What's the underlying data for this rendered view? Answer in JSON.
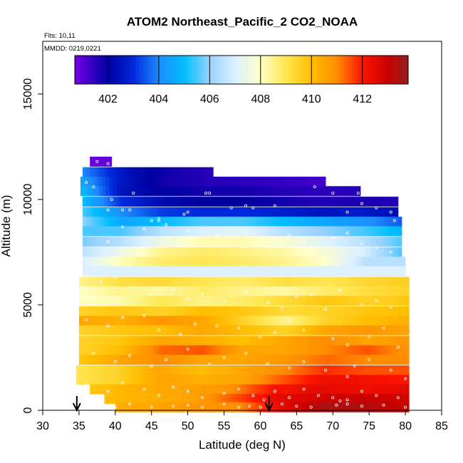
{
  "chart_data": {
    "type": "heatmap",
    "title": "ATOM2 Northeast_Pacific_2 CO2_NOAA",
    "flights_label": "Flts: 10,11",
    "dates_label": "MMDD: 0219,0221",
    "xlabel": "Latitude (deg N)",
    "ylabel": "Altitude (m)",
    "xlim": [
      30,
      85
    ],
    "ylim": [
      0,
      17500
    ],
    "x_ticks": [
      30,
      35,
      40,
      45,
      50,
      55,
      60,
      65,
      70,
      75,
      80,
      85
    ],
    "y_ticks": [
      0,
      5000,
      10000,
      15000
    ],
    "colorbar": {
      "range": [
        400.7,
        413.8
      ],
      "ticks": [
        402,
        404,
        406,
        408,
        410,
        412
      ]
    },
    "arrow_markers_latitude": [
      34.7,
      61.2
    ],
    "altitude_bands": [
      {
        "alt": 11800,
        "lat": [
          36.5,
          39.5
        ],
        "co2": [
          400.9,
          400.9
        ]
      },
      {
        "alt": 11300,
        "lat": [
          35.5,
          53.5
        ],
        "co2": [
          404.0,
          402.4,
          401.8,
          401.5
        ]
      },
      {
        "alt": 10850,
        "lat": [
          35.2,
          69.0
        ],
        "co2": [
          404.5,
          402.6,
          401.8,
          401.6,
          401.5,
          401.4,
          401.2
        ]
      },
      {
        "alt": 10400,
        "lat": [
          35.2,
          73.8
        ],
        "co2": [
          405.0,
          402.5,
          402.0,
          401.8,
          401.8,
          401.6,
          401.5,
          401.6
        ]
      },
      {
        "alt": 9900,
        "lat": [
          35.5,
          79.0
        ],
        "co2": [
          405.0,
          403.0,
          402.3,
          402.0,
          402.0,
          401.8,
          401.6,
          401.7,
          401.6
        ]
      },
      {
        "alt": 9400,
        "lat": [
          35.5,
          79.0
        ],
        "co2": [
          405.5,
          404.0,
          403.2,
          403.0,
          403.0,
          402.8,
          402.5,
          402.7,
          402.3
        ]
      },
      {
        "alt": 8950,
        "lat": [
          35.5,
          79.5
        ],
        "co2": [
          406.0,
          404.5,
          405.0,
          405.5,
          405.5,
          405.0,
          404.5,
          404.2,
          403.5
        ]
      },
      {
        "alt": 8500,
        "lat": [
          35.5,
          79.5
        ],
        "co2": [
          405.5,
          405.5,
          406.5,
          407.0,
          407.2,
          406.5,
          406.0,
          405.5,
          404.8
        ]
      },
      {
        "alt": 8000,
        "lat": [
          35.5,
          79.5
        ],
        "co2": [
          405.8,
          406.5,
          407.5,
          408.2,
          408.2,
          407.8,
          407.2,
          406.5,
          405.5
        ]
      },
      {
        "alt": 7500,
        "lat": [
          35.5,
          79.5
        ],
        "co2": [
          406.5,
          407.5,
          408.5,
          408.8,
          408.6,
          408.3,
          407.8,
          407.0,
          405.5
        ]
      },
      {
        "alt": 7050,
        "lat": [
          35.5,
          80.0
        ],
        "co2": [
          407.0,
          408.2,
          408.8,
          409.0,
          408.8,
          408.5,
          408.0,
          406.5,
          406.5
        ]
      },
      {
        "alt": 6600,
        "lat": [
          35.5,
          80.0
        ],
        "co2": [
          407.0,
          407.0,
          407.0,
          407.0,
          407.0,
          407.0,
          407.0,
          407.0,
          407.0
        ]
      },
      {
        "alt": 6100,
        "lat": [
          35.0,
          80.5
        ],
        "co2": [
          408.5,
          409.2,
          409.3,
          409.0,
          408.8,
          409.2,
          409.0,
          409.4,
          409.6
        ]
      },
      {
        "alt": 5650,
        "lat": [
          35.0,
          80.5
        ],
        "co2": [
          408.0,
          408.5,
          408.3,
          408.8,
          408.5,
          408.3,
          408.8,
          409.2,
          409.5
        ]
      },
      {
        "alt": 5200,
        "lat": [
          35.0,
          80.5
        ],
        "co2": [
          408.0,
          408.2,
          409.0,
          408.5,
          408.8,
          409.3,
          409.8,
          409.5,
          409.8
        ]
      },
      {
        "alt": 4700,
        "lat": [
          35.0,
          80.5
        ],
        "co2": [
          409.5,
          409.8,
          409.5,
          410.0,
          409.8,
          409.3,
          409.5,
          409.8,
          410.0
        ]
      },
      {
        "alt": 4250,
        "lat": [
          35.0,
          80.5
        ],
        "co2": [
          410.5,
          410.3,
          410.8,
          410.5,
          409.5,
          408.5,
          409.5,
          410.0,
          410.3
        ]
      },
      {
        "alt": 3800,
        "lat": [
          35.0,
          80.5
        ],
        "co2": [
          409.5,
          409.8,
          410.0,
          410.5,
          410.0,
          409.5,
          410.5,
          410.8,
          410.5
        ]
      },
      {
        "alt": 3300,
        "lat": [
          35.0,
          80.5
        ],
        "co2": [
          409.5,
          409.8,
          410.5,
          410.3,
          410.0,
          410.5,
          411.0,
          410.5,
          410.8
        ]
      },
      {
        "alt": 2850,
        "lat": [
          35.0,
          80.5
        ],
        "co2": [
          409.5,
          410.0,
          411.3,
          411.5,
          410.5,
          410.5,
          411.0,
          411.5,
          410.8
        ]
      },
      {
        "alt": 2400,
        "lat": [
          35.0,
          80.5
        ],
        "co2": [
          409.8,
          410.5,
          411.0,
          410.5,
          410.5,
          410.8,
          411.3,
          411.0,
          411.0
        ]
      },
      {
        "alt": 1900,
        "lat": [
          34.6,
          80.5
        ],
        "co2": [
          409.0,
          409.5,
          410.5,
          410.0,
          410.5,
          411.0,
          411.8,
          411.5,
          411.5
        ]
      },
      {
        "alt": 1450,
        "lat": [
          34.6,
          80.5
        ],
        "co2": [
          409.0,
          409.5,
          410.5,
          410.3,
          410.5,
          411.5,
          412.3,
          412.2,
          412.0
        ]
      },
      {
        "alt": 1000,
        "lat": [
          36.5,
          80.5
        ],
        "co2": [
          409.8,
          410.3,
          410.5,
          410.8,
          412.0,
          412.5,
          412.3,
          412.5
        ]
      },
      {
        "alt": 550,
        "lat": [
          38.5,
          80.5
        ],
        "co2": [
          410.0,
          410.3,
          410.5,
          411.5,
          412.5,
          412.8,
          413.0,
          412.8
        ]
      },
      {
        "alt": 150,
        "lat": [
          40.0,
          80.5
        ],
        "co2": [
          410.3,
          410.5,
          410.8,
          411.0,
          412.5,
          413.5,
          413.3,
          413.0
        ]
      }
    ],
    "sample_points": [
      [
        37.5,
        11800
      ],
      [
        39,
        11700
      ],
      [
        36,
        10800
      ],
      [
        37,
        10600
      ],
      [
        39.5,
        10000
      ],
      [
        39,
        9500
      ],
      [
        41,
        9500
      ],
      [
        42,
        9500
      ],
      [
        42.5,
        10300
      ],
      [
        45,
        9000
      ],
      [
        46,
        9000
      ],
      [
        49.5,
        9300
      ],
      [
        50,
        9400
      ],
      [
        52.5,
        10300
      ],
      [
        53,
        10300
      ],
      [
        56,
        9600
      ],
      [
        58,
        9700
      ],
      [
        59,
        9600
      ],
      [
        62,
        9700
      ],
      [
        67.5,
        10600
      ],
      [
        70,
        10300
      ],
      [
        72,
        9400
      ],
      [
        73.5,
        10300
      ],
      [
        74,
        9800
      ],
      [
        76,
        9600
      ],
      [
        78,
        9400
      ],
      [
        78.5,
        9000
      ],
      [
        39,
        8000
      ],
      [
        41,
        8700
      ],
      [
        44,
        8600
      ],
      [
        46,
        9100
      ],
      [
        47,
        8800
      ],
      [
        50,
        8500
      ],
      [
        54,
        8300
      ],
      [
        58,
        8400
      ],
      [
        62,
        8100
      ],
      [
        64,
        8300
      ],
      [
        66,
        8000
      ],
      [
        70,
        8200
      ],
      [
        72,
        8400
      ],
      [
        74,
        7900
      ],
      [
        76,
        7700
      ],
      [
        78,
        7500
      ],
      [
        36,
        6400
      ],
      [
        38,
        6100
      ],
      [
        40,
        6300
      ],
      [
        42,
        5800
      ],
      [
        45,
        5500
      ],
      [
        48,
        5700
      ],
      [
        50,
        5300
      ],
      [
        52,
        5500
      ],
      [
        55,
        5200
      ],
      [
        58,
        5600
      ],
      [
        61,
        5100
      ],
      [
        63,
        4900
      ],
      [
        65,
        5400
      ],
      [
        67,
        5500
      ],
      [
        69,
        4800
      ],
      [
        71,
        5700
      ],
      [
        74,
        5000
      ],
      [
        76,
        5200
      ],
      [
        78,
        4900
      ],
      [
        36,
        4300
      ],
      [
        39,
        4000
      ],
      [
        41,
        4400
      ],
      [
        44,
        4500
      ],
      [
        46,
        3800
      ],
      [
        49,
        3600
      ],
      [
        51,
        4100
      ],
      [
        54,
        4000
      ],
      [
        57,
        3900
      ],
      [
        60,
        3500
      ],
      [
        62,
        3700
      ],
      [
        64,
        4300
      ],
      [
        66,
        3800
      ],
      [
        70,
        3400
      ],
      [
        72,
        3100
      ],
      [
        75,
        3500
      ],
      [
        77,
        3900
      ],
      [
        79,
        3000
      ],
      [
        37,
        2700
      ],
      [
        40,
        2300
      ],
      [
        42,
        2600
      ],
      [
        45,
        2100
      ],
      [
        47,
        2400
      ],
      [
        50,
        2900
      ],
      [
        53,
        2200
      ],
      [
        55,
        2500
      ],
      [
        58,
        2700
      ],
      [
        61,
        2200
      ],
      [
        64,
        2000
      ],
      [
        66,
        2300
      ],
      [
        69,
        1900
      ],
      [
        72,
        1600
      ],
      [
        73,
        2100
      ],
      [
        75,
        2400
      ],
      [
        78,
        1900
      ],
      [
        80,
        1500
      ],
      [
        36,
        1200
      ],
      [
        39,
        900
      ],
      [
        41,
        1300
      ],
      [
        44,
        1000
      ],
      [
        46,
        700
      ],
      [
        48,
        1100
      ],
      [
        50,
        900
      ],
      [
        52,
        600
      ],
      [
        55,
        800
      ],
      [
        57,
        1000
      ],
      [
        59,
        700
      ],
      [
        60.5,
        500
      ],
      [
        62,
        900
      ],
      [
        64,
        600
      ],
      [
        66,
        1000
      ],
      [
        68,
        700
      ],
      [
        70,
        600
      ],
      [
        72,
        500
      ],
      [
        74,
        900
      ],
      [
        76,
        700
      ],
      [
        79,
        600
      ],
      [
        40,
        150
      ],
      [
        42,
        300
      ],
      [
        45,
        150
      ],
      [
        48,
        200
      ],
      [
        50,
        250
      ],
      [
        52,
        150
      ],
      [
        55,
        300
      ],
      [
        57,
        150
      ],
      [
        58.5,
        200
      ],
      [
        60,
        150
      ],
      [
        63,
        300
      ],
      [
        65,
        200
      ],
      [
        67,
        150
      ],
      [
        70.5,
        250
      ],
      [
        71,
        450
      ],
      [
        72,
        300
      ],
      [
        74,
        200
      ],
      [
        77,
        250
      ],
      [
        80,
        150
      ]
    ]
  }
}
